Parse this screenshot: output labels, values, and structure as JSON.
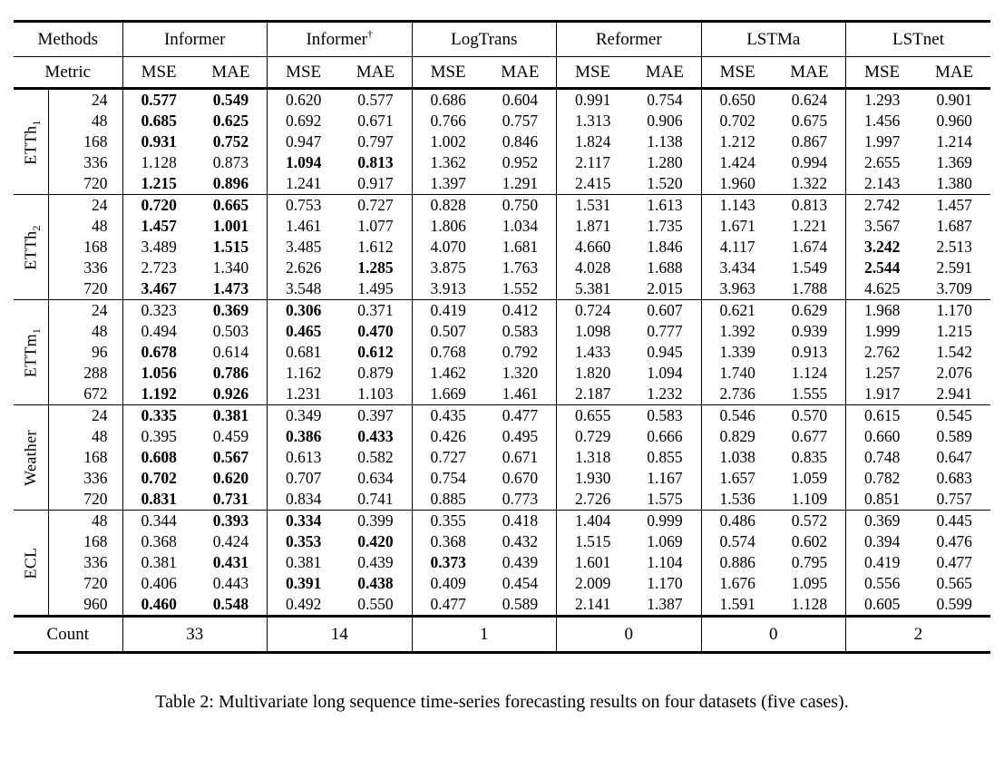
{
  "table": {
    "methods_label": "Methods",
    "metric_label": "Metric",
    "count_label": "Count",
    "metrics": [
      "MSE",
      "MAE"
    ],
    "methods": [
      {
        "name": "Informer",
        "sup": ""
      },
      {
        "name": "Informer",
        "sup": "†"
      },
      {
        "name": "LogTrans",
        "sup": ""
      },
      {
        "name": "Reformer",
        "sup": ""
      },
      {
        "name": "LSTMa",
        "sup": ""
      },
      {
        "name": "LSTnet",
        "sup": ""
      }
    ],
    "groups": [
      {
        "dataset": {
          "base": "ETTh",
          "sub": "1"
        },
        "rows": [
          {
            "horizon": "24",
            "values": [
              "0.577",
              "0.549",
              "0.620",
              "0.577",
              "0.686",
              "0.604",
              "0.991",
              "0.754",
              "0.650",
              "0.624",
              "1.293",
              "0.901"
            ],
            "bold": [
              1,
              1,
              0,
              0,
              0,
              0,
              0,
              0,
              0,
              0,
              0,
              0
            ]
          },
          {
            "horizon": "48",
            "values": [
              "0.685",
              "0.625",
              "0.692",
              "0.671",
              "0.766",
              "0.757",
              "1.313",
              "0.906",
              "0.702",
              "0.675",
              "1.456",
              "0.960"
            ],
            "bold": [
              1,
              1,
              0,
              0,
              0,
              0,
              0,
              0,
              0,
              0,
              0,
              0
            ]
          },
          {
            "horizon": "168",
            "values": [
              "0.931",
              "0.752",
              "0.947",
              "0.797",
              "1.002",
              "0.846",
              "1.824",
              "1.138",
              "1.212",
              "0.867",
              "1.997",
              "1.214"
            ],
            "bold": [
              1,
              1,
              0,
              0,
              0,
              0,
              0,
              0,
              0,
              0,
              0,
              0
            ]
          },
          {
            "horizon": "336",
            "values": [
              "1.128",
              "0.873",
              "1.094",
              "0.813",
              "1.362",
              "0.952",
              "2.117",
              "1.280",
              "1.424",
              "0.994",
              "2.655",
              "1.369"
            ],
            "bold": [
              0,
              0,
              1,
              1,
              0,
              0,
              0,
              0,
              0,
              0,
              0,
              0
            ]
          },
          {
            "horizon": "720",
            "values": [
              "1.215",
              "0.896",
              "1.241",
              "0.917",
              "1.397",
              "1.291",
              "2.415",
              "1.520",
              "1.960",
              "1.322",
              "2.143",
              "1.380"
            ],
            "bold": [
              1,
              1,
              0,
              0,
              0,
              0,
              0,
              0,
              0,
              0,
              0,
              0
            ]
          }
        ]
      },
      {
        "dataset": {
          "base": "ETTh",
          "sub": "2"
        },
        "rows": [
          {
            "horizon": "24",
            "values": [
              "0.720",
              "0.665",
              "0.753",
              "0.727",
              "0.828",
              "0.750",
              "1.531",
              "1.613",
              "1.143",
              "0.813",
              "2.742",
              "1.457"
            ],
            "bold": [
              1,
              1,
              0,
              0,
              0,
              0,
              0,
              0,
              0,
              0,
              0,
              0
            ]
          },
          {
            "horizon": "48",
            "values": [
              "1.457",
              "1.001",
              "1.461",
              "1.077",
              "1.806",
              "1.034",
              "1.871",
              "1.735",
              "1.671",
              "1.221",
              "3.567",
              "1.687"
            ],
            "bold": [
              1,
              1,
              0,
              0,
              0,
              0,
              0,
              0,
              0,
              0,
              0,
              0
            ]
          },
          {
            "horizon": "168",
            "values": [
              "3.489",
              "1.515",
              "3.485",
              "1.612",
              "4.070",
              "1.681",
              "4.660",
              "1.846",
              "4.117",
              "1.674",
              "3.242",
              "2.513"
            ],
            "bold": [
              0,
              1,
              0,
              0,
              0,
              0,
              0,
              0,
              0,
              0,
              1,
              0
            ]
          },
          {
            "horizon": "336",
            "values": [
              "2.723",
              "1.340",
              "2.626",
              "1.285",
              "3.875",
              "1.763",
              "4.028",
              "1.688",
              "3.434",
              "1.549",
              "2.544",
              "2.591"
            ],
            "bold": [
              0,
              0,
              0,
              1,
              0,
              0,
              0,
              0,
              0,
              0,
              1,
              0
            ]
          },
          {
            "horizon": "720",
            "values": [
              "3.467",
              "1.473",
              "3.548",
              "1.495",
              "3.913",
              "1.552",
              "5.381",
              "2.015",
              "3.963",
              "1.788",
              "4.625",
              "3.709"
            ],
            "bold": [
              1,
              1,
              0,
              0,
              0,
              0,
              0,
              0,
              0,
              0,
              0,
              0
            ]
          }
        ]
      },
      {
        "dataset": {
          "base": "ETTm",
          "sub": "1"
        },
        "rows": [
          {
            "horizon": "24",
            "values": [
              "0.323",
              "0.369",
              "0.306",
              "0.371",
              "0.419",
              "0.412",
              "0.724",
              "0.607",
              "0.621",
              "0.629",
              "1.968",
              "1.170"
            ],
            "bold": [
              0,
              1,
              1,
              0,
              0,
              0,
              0,
              0,
              0,
              0,
              0,
              0
            ]
          },
          {
            "horizon": "48",
            "values": [
              "0.494",
              "0.503",
              "0.465",
              "0.470",
              "0.507",
              "0.583",
              "1.098",
              "0.777",
              "1.392",
              "0.939",
              "1.999",
              "1.215"
            ],
            "bold": [
              0,
              0,
              1,
              1,
              0,
              0,
              0,
              0,
              0,
              0,
              0,
              0
            ]
          },
          {
            "horizon": "96",
            "values": [
              "0.678",
              "0.614",
              "0.681",
              "0.612",
              "0.768",
              "0.792",
              "1.433",
              "0.945",
              "1.339",
              "0.913",
              "2.762",
              "1.542"
            ],
            "bold": [
              1,
              0,
              0,
              1,
              0,
              0,
              0,
              0,
              0,
              0,
              0,
              0
            ]
          },
          {
            "horizon": "288",
            "values": [
              "1.056",
              "0.786",
              "1.162",
              "0.879",
              "1.462",
              "1.320",
              "1.820",
              "1.094",
              "1.740",
              "1.124",
              "1.257",
              "2.076"
            ],
            "bold": [
              1,
              1,
              0,
              0,
              0,
              0,
              0,
              0,
              0,
              0,
              0,
              0
            ]
          },
          {
            "horizon": "672",
            "values": [
              "1.192",
              "0.926",
              "1.231",
              "1.103",
              "1.669",
              "1.461",
              "2.187",
              "1.232",
              "2.736",
              "1.555",
              "1.917",
              "2.941"
            ],
            "bold": [
              1,
              1,
              0,
              0,
              0,
              0,
              0,
              0,
              0,
              0,
              0,
              0
            ]
          }
        ]
      },
      {
        "dataset": {
          "base": "Weather",
          "sub": ""
        },
        "rows": [
          {
            "horizon": "24",
            "values": [
              "0.335",
              "0.381",
              "0.349",
              "0.397",
              "0.435",
              "0.477",
              "0.655",
              "0.583",
              "0.546",
              "0.570",
              "0.615",
              "0.545"
            ],
            "bold": [
              1,
              1,
              0,
              0,
              0,
              0,
              0,
              0,
              0,
              0,
              0,
              0
            ]
          },
          {
            "horizon": "48",
            "values": [
              "0.395",
              "0.459",
              "0.386",
              "0.433",
              "0.426",
              "0.495",
              "0.729",
              "0.666",
              "0.829",
              "0.677",
              "0.660",
              "0.589"
            ],
            "bold": [
              0,
              0,
              1,
              1,
              0,
              0,
              0,
              0,
              0,
              0,
              0,
              0
            ]
          },
          {
            "horizon": "168",
            "values": [
              "0.608",
              "0.567",
              "0.613",
              "0.582",
              "0.727",
              "0.671",
              "1.318",
              "0.855",
              "1.038",
              "0.835",
              "0.748",
              "0.647"
            ],
            "bold": [
              1,
              1,
              0,
              0,
              0,
              0,
              0,
              0,
              0,
              0,
              0,
              0
            ]
          },
          {
            "horizon": "336",
            "values": [
              "0.702",
              "0.620",
              "0.707",
              "0.634",
              "0.754",
              "0.670",
              "1.930",
              "1.167",
              "1.657",
              "1.059",
              "0.782",
              "0.683"
            ],
            "bold": [
              1,
              1,
              0,
              0,
              0,
              0,
              0,
              0,
              0,
              0,
              0,
              0
            ]
          },
          {
            "horizon": "720",
            "values": [
              "0.831",
              "0.731",
              "0.834",
              "0.741",
              "0.885",
              "0.773",
              "2.726",
              "1.575",
              "1.536",
              "1.109",
              "0.851",
              "0.757"
            ],
            "bold": [
              1,
              1,
              0,
              0,
              0,
              0,
              0,
              0,
              0,
              0,
              0,
              0
            ]
          }
        ]
      },
      {
        "dataset": {
          "base": "ECL",
          "sub": ""
        },
        "rows": [
          {
            "horizon": "48",
            "values": [
              "0.344",
              "0.393",
              "0.334",
              "0.399",
              "0.355",
              "0.418",
              "1.404",
              "0.999",
              "0.486",
              "0.572",
              "0.369",
              "0.445"
            ],
            "bold": [
              0,
              1,
              1,
              0,
              0,
              0,
              0,
              0,
              0,
              0,
              0,
              0
            ]
          },
          {
            "horizon": "168",
            "values": [
              "0.368",
              "0.424",
              "0.353",
              "0.420",
              "0.368",
              "0.432",
              "1.515",
              "1.069",
              "0.574",
              "0.602",
              "0.394",
              "0.476"
            ],
            "bold": [
              0,
              0,
              1,
              1,
              0,
              0,
              0,
              0,
              0,
              0,
              0,
              0
            ]
          },
          {
            "horizon": "336",
            "values": [
              "0.381",
              "0.431",
              "0.381",
              "0.439",
              "0.373",
              "0.439",
              "1.601",
              "1.104",
              "0.886",
              "0.795",
              "0.419",
              "0.477"
            ],
            "bold": [
              0,
              1,
              0,
              0,
              1,
              0,
              0,
              0,
              0,
              0,
              0,
              0
            ]
          },
          {
            "horizon": "720",
            "values": [
              "0.406",
              "0.443",
              "0.391",
              "0.438",
              "0.409",
              "0.454",
              "2.009",
              "1.170",
              "1.676",
              "1.095",
              "0.556",
              "0.565"
            ],
            "bold": [
              0,
              0,
              1,
              1,
              0,
              0,
              0,
              0,
              0,
              0,
              0,
              0
            ]
          },
          {
            "horizon": "960",
            "values": [
              "0.460",
              "0.548",
              "0.492",
              "0.550",
              "0.477",
              "0.589",
              "2.141",
              "1.387",
              "1.591",
              "1.128",
              "0.605",
              "0.599"
            ],
            "bold": [
              1,
              1,
              0,
              0,
              0,
              0,
              0,
              0,
              0,
              0,
              0,
              0
            ]
          }
        ]
      }
    ],
    "count_values": [
      "33",
      "14",
      "1",
      "0",
      "0",
      "2"
    ]
  },
  "caption": "Table 2: Multivariate long sequence time-series forecasting results on four datasets (five cases)."
}
